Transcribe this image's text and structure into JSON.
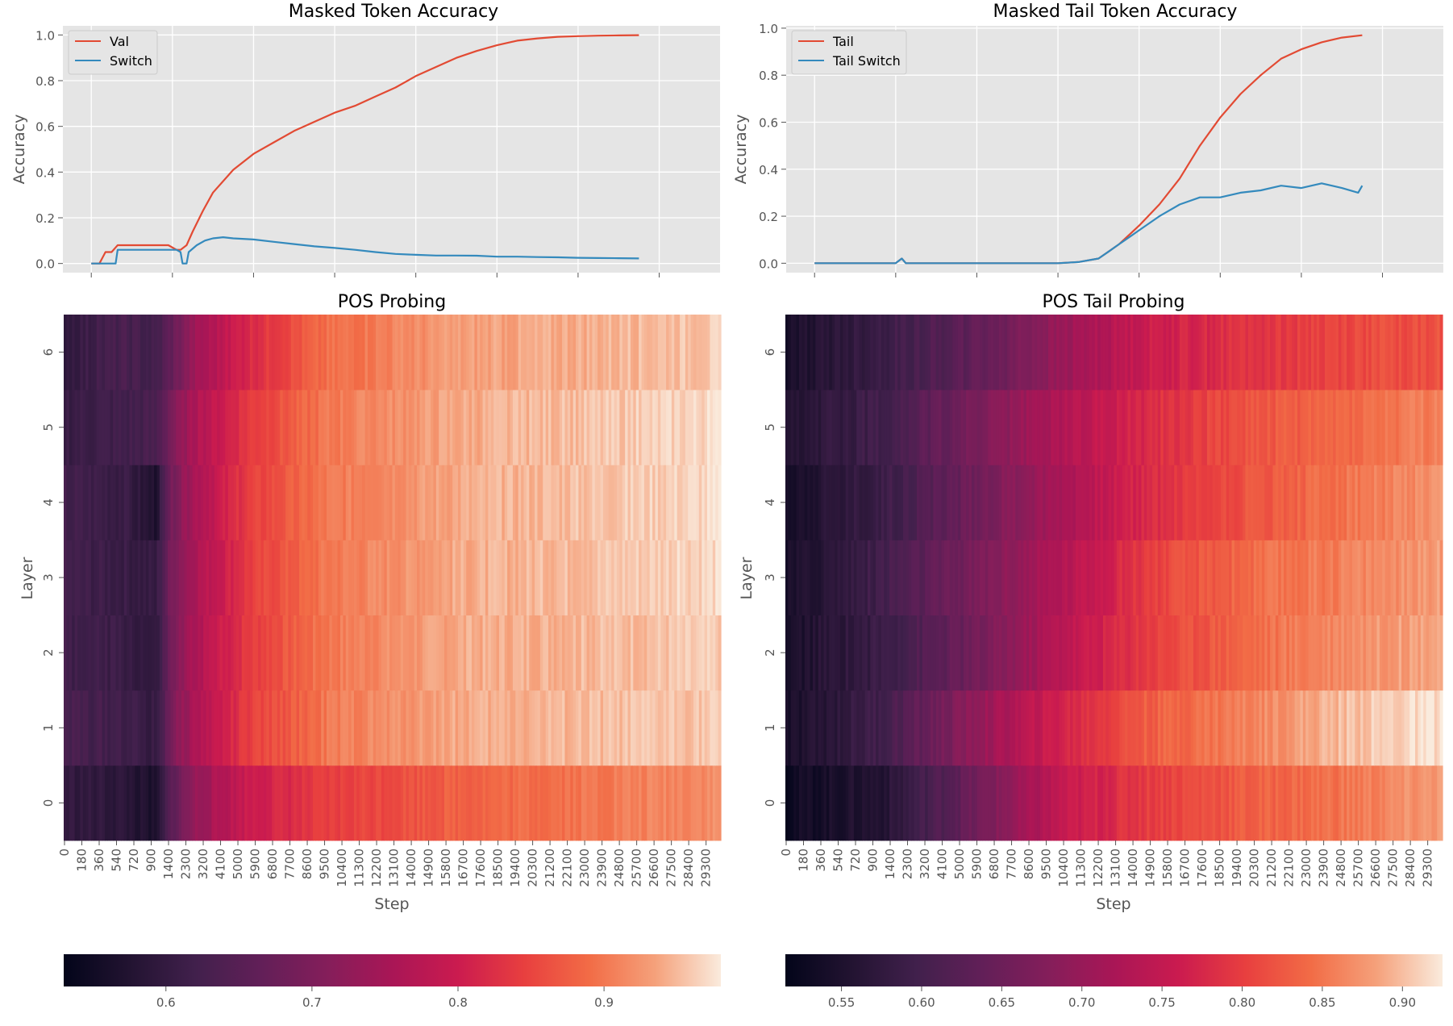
{
  "colors": {
    "val": "#E24A33",
    "switch": "#348ABD",
    "panel_bg": "#E5E5E5",
    "grid": "#FFFFFF",
    "tick_text": "#555555",
    "title_text": "#000000"
  },
  "chart_data": [
    {
      "type": "line",
      "title": "Masked Token Accuracy",
      "xlabel": "",
      "ylabel": "Accuracy",
      "xlim": [
        -1400,
        31000
      ],
      "ylim": [
        -0.04,
        1.04
      ],
      "yticks": [
        "0.0",
        "0.2",
        "0.4",
        "0.6",
        "0.8",
        "1.0"
      ],
      "ytick_values": [
        0,
        0.2,
        0.4,
        0.6,
        0.8,
        1.0
      ],
      "xticks_values": [
        0,
        4000,
        8000,
        12000,
        16000,
        20000,
        24000,
        28000
      ],
      "grid": true,
      "legend": "top-left",
      "series": [
        {
          "name": "Val",
          "color": "#E24A33",
          "x": [
            0,
            200,
            400,
            700,
            1000,
            1200,
            1300,
            2000,
            3000,
            3800,
            4200,
            4400,
            4700,
            5000,
            5500,
            6000,
            7000,
            8000,
            9000,
            10000,
            11000,
            12000,
            13000,
            14000,
            15000,
            16000,
            17000,
            18000,
            19000,
            20000,
            21000,
            22000,
            23000,
            24000,
            25000,
            26000,
            27000
          ],
          "values": [
            0.0,
            0.0,
            0.0,
            0.05,
            0.05,
            0.07,
            0.08,
            0.08,
            0.08,
            0.08,
            0.06,
            0.06,
            0.08,
            0.14,
            0.23,
            0.31,
            0.41,
            0.48,
            0.53,
            0.58,
            0.62,
            0.66,
            0.69,
            0.73,
            0.77,
            0.82,
            0.86,
            0.9,
            0.93,
            0.955,
            0.975,
            0.985,
            0.992,
            0.995,
            0.997,
            0.998,
            0.999
          ]
        },
        {
          "name": "Switch",
          "color": "#348ABD",
          "x": [
            0,
            600,
            1200,
            1300,
            2000,
            3000,
            4000,
            4200,
            4400,
            4500,
            4700,
            4800,
            5200,
            5600,
            6000,
            6500,
            7000,
            8000,
            9000,
            10000,
            11000,
            12000,
            13000,
            14000,
            15000,
            16000,
            17000,
            18000,
            19000,
            20000,
            21000,
            22000,
            23000,
            24000,
            25000,
            26000,
            27000
          ],
          "values": [
            0.0,
            0.0,
            0.0,
            0.06,
            0.06,
            0.06,
            0.06,
            0.06,
            0.05,
            0.0,
            0.0,
            0.05,
            0.08,
            0.1,
            0.11,
            0.115,
            0.11,
            0.105,
            0.095,
            0.085,
            0.075,
            0.068,
            0.06,
            0.05,
            0.042,
            0.038,
            0.035,
            0.035,
            0.034,
            0.03,
            0.03,
            0.028,
            0.027,
            0.025,
            0.024,
            0.023,
            0.022
          ]
        }
      ]
    },
    {
      "type": "line",
      "title": "Masked Tail Token Accuracy",
      "xlabel": "",
      "ylabel": "Accuracy",
      "xlim": [
        -1400,
        31000
      ],
      "ylim": [
        -0.04,
        1.01
      ],
      "yticks": [
        "0.0",
        "0.2",
        "0.4",
        "0.6",
        "0.8",
        "1.0"
      ],
      "ytick_values": [
        0,
        0.2,
        0.4,
        0.6,
        0.8,
        1.0
      ],
      "xticks_values": [
        0,
        4000,
        8000,
        12000,
        16000,
        20000,
        24000,
        28000
      ],
      "grid": true,
      "legend": "top-left",
      "series": [
        {
          "name": "Tail",
          "color": "#E24A33",
          "x": [
            0,
            4000,
            4300,
            4500,
            4700,
            6000,
            10000,
            12000,
            13000,
            14000,
            14500,
            15000,
            15500,
            16000,
            17000,
            18000,
            19000,
            20000,
            21000,
            22000,
            23000,
            24000,
            25000,
            26000,
            27000
          ],
          "values": [
            0.0,
            0.0,
            0.02,
            0.0,
            0.0,
            0.0,
            0.0,
            0.0,
            0.005,
            0.02,
            0.05,
            0.08,
            0.12,
            0.16,
            0.25,
            0.36,
            0.5,
            0.62,
            0.72,
            0.8,
            0.87,
            0.91,
            0.94,
            0.96,
            0.97
          ]
        },
        {
          "name": "Tail Switch",
          "color": "#348ABD",
          "x": [
            0,
            4000,
            4300,
            4500,
            4700,
            6000,
            10000,
            12000,
            13000,
            14000,
            14500,
            15000,
            15500,
            16000,
            17000,
            18000,
            19000,
            20000,
            21000,
            22000,
            23000,
            24000,
            25000,
            26000,
            26800,
            27000
          ],
          "values": [
            0.0,
            0.0,
            0.02,
            0.0,
            0.0,
            0.0,
            0.0,
            0.0,
            0.005,
            0.02,
            0.05,
            0.08,
            0.11,
            0.14,
            0.2,
            0.25,
            0.28,
            0.28,
            0.3,
            0.31,
            0.33,
            0.32,
            0.34,
            0.32,
            0.3,
            0.33
          ]
        }
      ]
    },
    {
      "type": "heatmap",
      "title": "POS Probing",
      "xlabel": "Step",
      "ylabel": "Layer",
      "y_categories": [
        "0",
        "1",
        "2",
        "3",
        "4",
        "5",
        "6"
      ],
      "x_tick_labels": [
        "0",
        "180",
        "360",
        "540",
        "720",
        "900",
        "1400",
        "2300",
        "3200",
        "4100",
        "5000",
        "5900",
        "6800",
        "7700",
        "8600",
        "9500",
        "10400",
        "11300",
        "12200",
        "13100",
        "14000",
        "14900",
        "15800",
        "16700",
        "17600",
        "18500",
        "19400",
        "20300",
        "21200",
        "22100",
        "23000",
        "23900",
        "24800",
        "25700",
        "26600",
        "27500",
        "28400",
        "29300"
      ],
      "x_stops": [
        0,
        0.09,
        0.14,
        0.165,
        0.2,
        0.28,
        0.4,
        0.6,
        1.0
      ],
      "layer_rows": [
        {
          "layer": "0",
          "values": [
            0.6,
            0.59,
            0.56,
            0.66,
            0.73,
            0.8,
            0.84,
            0.88,
            0.92
          ]
        },
        {
          "layer": "1",
          "values": [
            0.63,
            0.62,
            0.6,
            0.7,
            0.76,
            0.84,
            0.9,
            0.94,
            0.96
          ]
        },
        {
          "layer": "2",
          "values": [
            0.62,
            0.61,
            0.59,
            0.69,
            0.76,
            0.84,
            0.9,
            0.94,
            0.96
          ]
        },
        {
          "layer": "3",
          "values": [
            0.62,
            0.61,
            0.6,
            0.7,
            0.76,
            0.84,
            0.9,
            0.94,
            0.97
          ]
        },
        {
          "layer": "4",
          "values": [
            0.62,
            0.61,
            0.57,
            0.69,
            0.76,
            0.84,
            0.9,
            0.94,
            0.97
          ]
        },
        {
          "layer": "5",
          "values": [
            0.61,
            0.62,
            0.63,
            0.7,
            0.76,
            0.84,
            0.9,
            0.94,
            0.97
          ]
        },
        {
          "layer": "6",
          "values": [
            0.6,
            0.63,
            0.62,
            0.67,
            0.74,
            0.82,
            0.89,
            0.93,
            0.96
          ]
        }
      ],
      "colorbar": {
        "range": [
          0.53,
          0.98
        ],
        "ticks": [
          0.6,
          0.7,
          0.8,
          0.9
        ],
        "tick_labels": [
          "0.6",
          "0.7",
          "0.8",
          "0.9"
        ]
      }
    },
    {
      "type": "heatmap",
      "title": "POS Tail Probing",
      "xlabel": "Step",
      "ylabel": "Layer",
      "y_categories": [
        "0",
        "1",
        "2",
        "3",
        "4",
        "5",
        "6"
      ],
      "x_tick_labels": [
        "0",
        "180",
        "360",
        "540",
        "720",
        "900",
        "1400",
        "2300",
        "3200",
        "4100",
        "5000",
        "5900",
        "6800",
        "7700",
        "8600",
        "9500",
        "10400",
        "11300",
        "12200",
        "13100",
        "14000",
        "14900",
        "15800",
        "16700",
        "17600",
        "18500",
        "19400",
        "20300",
        "21200",
        "22100",
        "23000",
        "23900",
        "24800",
        "25700",
        "26600",
        "27500",
        "28400",
        "29300"
      ],
      "x_stops": [
        0,
        0.05,
        0.15,
        0.3,
        0.42,
        0.55,
        0.7,
        0.85,
        1.0
      ],
      "layer_rows": [
        {
          "layer": "0",
          "values": [
            0.53,
            0.54,
            0.56,
            0.66,
            0.75,
            0.8,
            0.83,
            0.85,
            0.88
          ]
        },
        {
          "layer": "1",
          "values": [
            0.54,
            0.56,
            0.6,
            0.7,
            0.77,
            0.83,
            0.86,
            0.9,
            0.92
          ]
        },
        {
          "layer": "2",
          "values": [
            0.54,
            0.56,
            0.59,
            0.66,
            0.74,
            0.8,
            0.84,
            0.87,
            0.89
          ]
        },
        {
          "layer": "3",
          "values": [
            0.54,
            0.56,
            0.6,
            0.67,
            0.73,
            0.8,
            0.84,
            0.86,
            0.88
          ]
        },
        {
          "layer": "4",
          "values": [
            0.54,
            0.56,
            0.59,
            0.66,
            0.72,
            0.78,
            0.82,
            0.85,
            0.87
          ]
        },
        {
          "layer": "5",
          "values": [
            0.55,
            0.57,
            0.6,
            0.67,
            0.73,
            0.78,
            0.82,
            0.84,
            0.86
          ]
        },
        {
          "layer": "6",
          "values": [
            0.54,
            0.56,
            0.59,
            0.64,
            0.7,
            0.76,
            0.79,
            0.81,
            0.82
          ]
        }
      ],
      "colorbar": {
        "range": [
          0.515,
          0.925
        ],
        "ticks": [
          0.55,
          0.6,
          0.65,
          0.7,
          0.75,
          0.8,
          0.85,
          0.9
        ],
        "tick_labels": [
          "0.55",
          "0.60",
          "0.65",
          "0.70",
          "0.75",
          "0.80",
          "0.85",
          "0.90"
        ]
      }
    }
  ]
}
